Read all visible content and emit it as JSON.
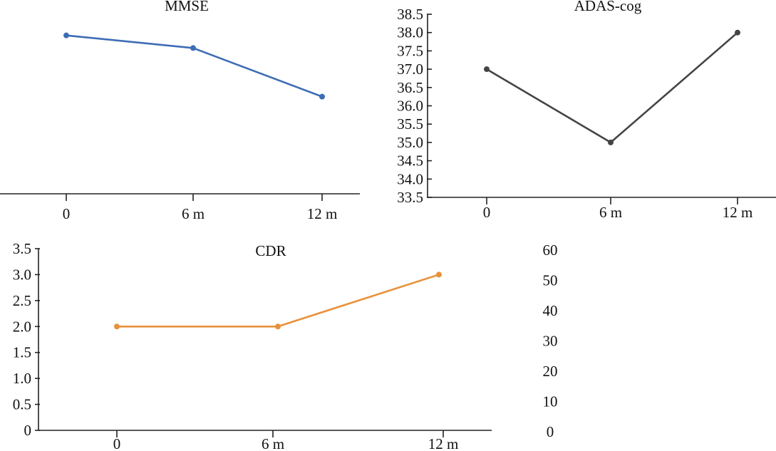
{
  "chart_data": [
    {
      "type": "line",
      "title": "MMSE",
      "categories": [
        "0",
        "6 m",
        "12 m"
      ],
      "values": [
        22.5,
        21.9,
        19.6
      ],
      "ylim": [
        15,
        23.5
      ],
      "yticks": [],
      "color": "#3d6db5",
      "show_y_axis": false
    },
    {
      "type": "line",
      "title": "ADAS-cog",
      "categories": [
        "0",
        "6 m",
        "12 m"
      ],
      "values": [
        37.0,
        35.0,
        38.0
      ],
      "ylim": [
        33.5,
        38.5
      ],
      "yticks": [
        "33.5",
        "34.0",
        "34.5",
        "35.0",
        "35.5",
        "36.0",
        "36.5",
        "37.0",
        "37.5",
        "38.0",
        "38.5"
      ],
      "color": "#444444",
      "show_y_axis": true
    },
    {
      "type": "line",
      "title": "CDR",
      "categories": [
        "0",
        "6 m",
        "12 m"
      ],
      "values": [
        2.0,
        2.0,
        3.0
      ],
      "ylim": [
        0,
        3.5
      ],
      "yticks": [
        "0",
        "0.5",
        "1.0",
        "1.5",
        "2.0",
        "2.5",
        "3.0",
        "3.5"
      ],
      "color": "#e8913a",
      "show_y_axis": true
    },
    {
      "type": "line",
      "title": "",
      "categories": [],
      "values": [],
      "ylim": [
        0,
        60
      ],
      "yticks": [
        "0",
        "10",
        "20",
        "30",
        "40",
        "50",
        "60"
      ],
      "show_y_axis": false
    }
  ]
}
